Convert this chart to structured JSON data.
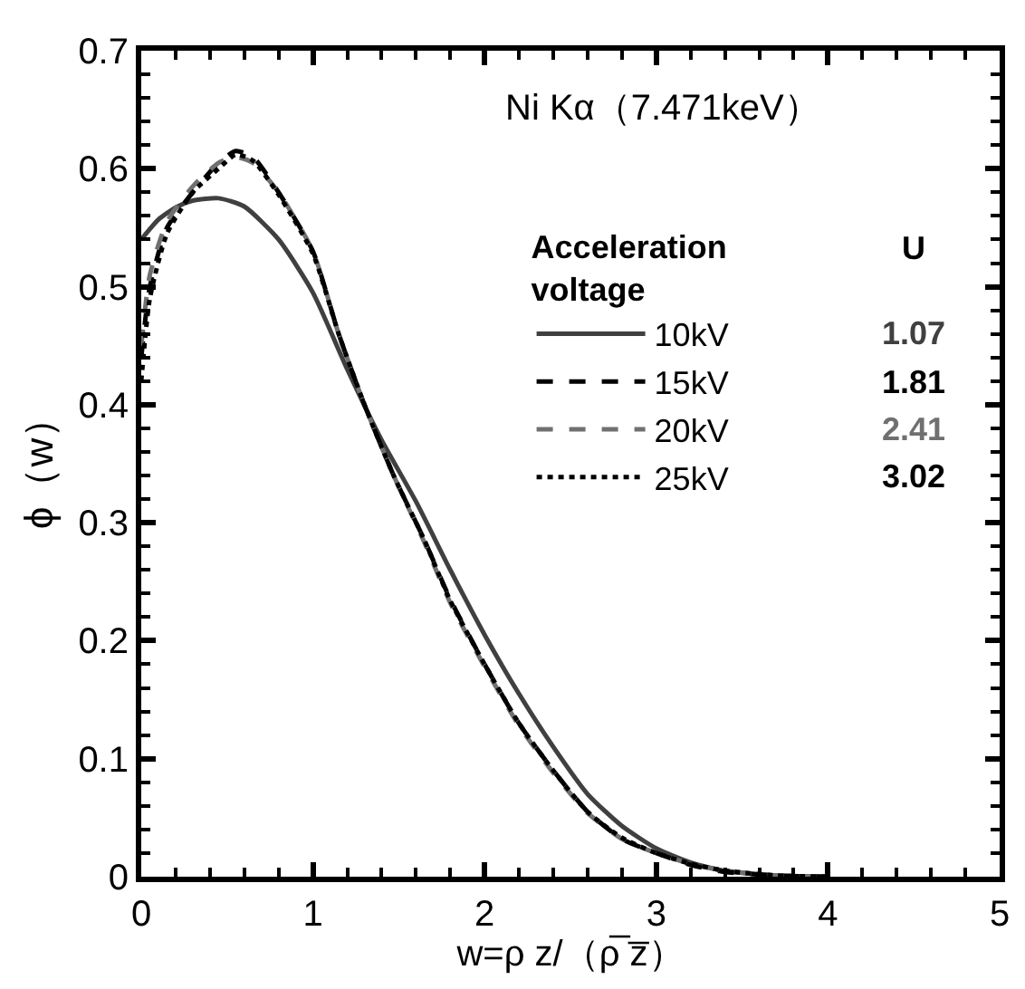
{
  "chart_data": {
    "type": "line",
    "xlabel": "w=ρ z/（ρ̅ z̅）",
    "ylabel": "ϕ（w）",
    "legend_title": "Acceleration voltage",
    "annotations": [
      "Ni Kα（7.471keV）",
      "U",
      "1.07",
      "1.81",
      "2.41",
      "3.02"
    ],
    "series": [
      {
        "name": "10kV",
        "color": "#404040",
        "line_style": "solid",
        "x": [
          0,
          0.1,
          0.2,
          0.3,
          0.45,
          0.6,
          0.8,
          1.0,
          1.2,
          1.4,
          1.6,
          1.8,
          2.0,
          2.2,
          2.4,
          2.6,
          2.8,
          3.0,
          3.2,
          3.4,
          3.7,
          4.0
        ],
        "values": [
          0.54,
          0.557,
          0.567,
          0.573,
          0.575,
          0.568,
          0.54,
          0.495,
          0.43,
          0.37,
          0.318,
          0.26,
          0.205,
          0.155,
          0.11,
          0.07,
          0.043,
          0.024,
          0.012,
          0.005,
          0.001,
          0
        ]
      },
      {
        "name": "15kV",
        "color": "#000000",
        "line_style": "dashed",
        "x": [
          0,
          0.05,
          0.15,
          0.3,
          0.45,
          0.55,
          0.65,
          0.8,
          1.0,
          1.15,
          1.3,
          1.47,
          1.65,
          1.8,
          2.0,
          2.2,
          2.4,
          2.6,
          2.8,
          3.0,
          3.2,
          3.4,
          3.7,
          4.0
        ],
        "values": [
          0.44,
          0.5,
          0.55,
          0.58,
          0.605,
          0.615,
          0.61,
          0.58,
          0.53,
          0.46,
          0.4,
          0.34,
          0.285,
          0.235,
          0.18,
          0.13,
          0.09,
          0.055,
          0.032,
          0.02,
          0.01,
          0.004,
          0.001,
          0
        ]
      },
      {
        "name": "20kV",
        "color": "#707070",
        "line_style": "dashed",
        "x": [
          0,
          0.05,
          0.15,
          0.3,
          0.45,
          0.55,
          0.65,
          0.8,
          1.0,
          1.15,
          1.3,
          1.47,
          1.65,
          1.8,
          2.0,
          2.2,
          2.4,
          2.6,
          2.8,
          3.0,
          3.2,
          3.4,
          3.7,
          4.0
        ],
        "values": [
          0.45,
          0.51,
          0.555,
          0.585,
          0.605,
          0.61,
          0.605,
          0.58,
          0.53,
          0.46,
          0.4,
          0.34,
          0.283,
          0.232,
          0.178,
          0.128,
          0.088,
          0.054,
          0.032,
          0.02,
          0.011,
          0.005,
          0.001,
          0
        ]
      },
      {
        "name": "25kV",
        "color": "#000000",
        "line_style": "dotted",
        "x": [
          0,
          0.05,
          0.15,
          0.3,
          0.45,
          0.55,
          0.65,
          0.8,
          1.0,
          1.15,
          1.3,
          1.47,
          1.65,
          1.8,
          2.0,
          2.2,
          2.4,
          2.6,
          2.8,
          3.0,
          3.2,
          3.4,
          3.7,
          4.0
        ],
        "values": [
          0.42,
          0.49,
          0.545,
          0.58,
          0.6,
          0.612,
          0.607,
          0.578,
          0.528,
          0.46,
          0.4,
          0.34,
          0.285,
          0.234,
          0.18,
          0.13,
          0.09,
          0.055,
          0.033,
          0.02,
          0.011,
          0.005,
          0.001,
          0
        ]
      }
    ],
    "xlim": [
      0,
      5
    ],
    "xticks": [
      0,
      1,
      2,
      3,
      4,
      5
    ],
    "ylim": [
      0,
      0.7
    ],
    "yticks": [
      0,
      0.1,
      0.2,
      0.3,
      0.4,
      0.5,
      0.6,
      0.7
    ],
    "grid": false,
    "legend": "top right",
    "marker": "none"
  }
}
